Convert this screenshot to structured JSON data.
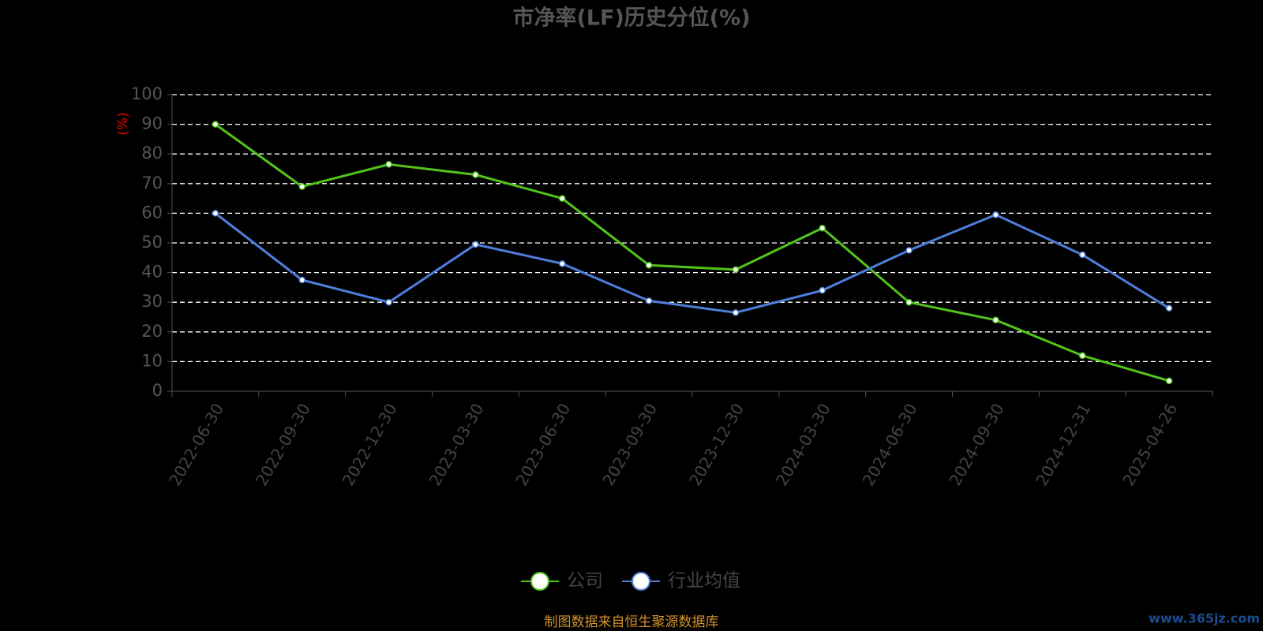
{
  "chart_data": {
    "type": "line",
    "title": "市净率(LF)历史分位(%)",
    "y_label": "(%)",
    "categories": [
      "2022-06-30",
      "2022-09-30",
      "2022-12-30",
      "2023-03-30",
      "2023-06-30",
      "2023-09-30",
      "2023-12-30",
      "2024-03-30",
      "2024-06-30",
      "2024-09-30",
      "2024-12-31",
      "2025-04-26"
    ],
    "series": [
      {
        "name": "公司",
        "color": "#52c41a",
        "values": [
          90,
          69,
          76.5,
          73,
          65,
          42.5,
          41,
          55,
          30,
          24,
          12,
          3.5
        ]
      },
      {
        "name": "行业均值",
        "color": "#4e7fdc",
        "values": [
          60,
          37.5,
          30,
          49.5,
          43,
          30.5,
          26.5,
          34,
          47.5,
          59.5,
          46,
          28
        ]
      }
    ],
    "ylim": [
      0,
      100
    ],
    "yticks": [
      0,
      10,
      20,
      30,
      40,
      50,
      60,
      70,
      80,
      90,
      100
    ],
    "grid": true,
    "footer": "制图数据来自恒生聚源数据库",
    "watermark": "www.365jz.com"
  }
}
